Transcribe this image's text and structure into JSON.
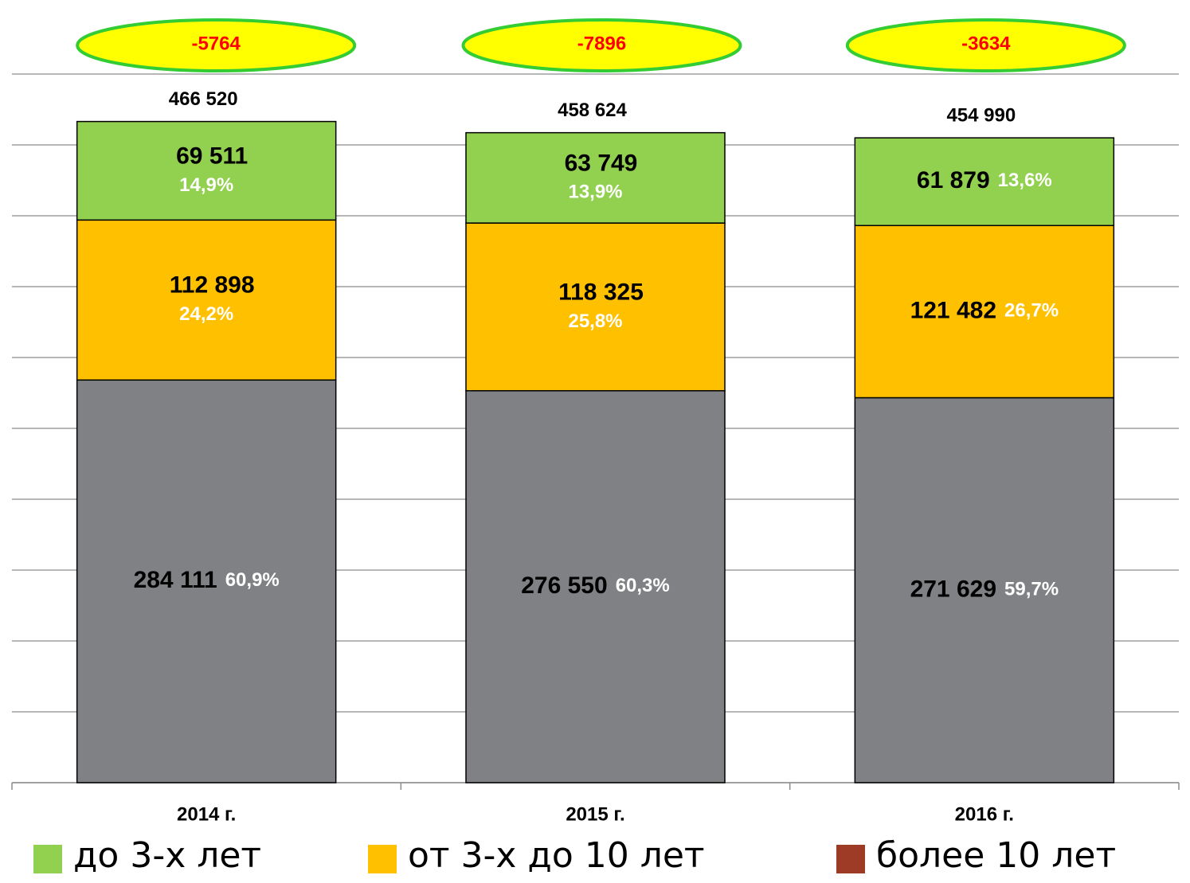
{
  "chart_data": {
    "type": "stacked_bar",
    "categories": [
      "2014 г.",
      "2015 г.",
      "2016 г."
    ],
    "series": [
      {
        "name": "до 3-х лет",
        "color": "#92d050",
        "legend_color": "#92d050",
        "values": [
          69511,
          63749,
          61879
        ],
        "value_labels": [
          "69 511",
          "63 749",
          "61 879"
        ],
        "shares": [
          14.9,
          13.9,
          13.6
        ],
        "share_labels": [
          "14,9%",
          "13,9%",
          "13,6%"
        ]
      },
      {
        "name": "от 3-х до 10 лет",
        "color": "#ffc000",
        "legend_color": "#ffc000",
        "values": [
          112898,
          118325,
          121482
        ],
        "value_labels": [
          "112 898",
          "118 325",
          "121 482"
        ],
        "shares": [
          24.2,
          25.8,
          26.7
        ],
        "share_labels": [
          "24,2%",
          "25,8%",
          "26,7%"
        ]
      },
      {
        "name": "более 10 лет",
        "color": "#7f8184",
        "legend_color": "#9e3b26",
        "values": [
          284111,
          276550,
          271629
        ],
        "value_labels": [
          "284 111",
          "276 550",
          "271 629"
        ],
        "shares": [
          60.9,
          60.3,
          59.7
        ],
        "share_labels": [
          "60,9%",
          "60,3%",
          "59,7%"
        ]
      }
    ],
    "totals": [
      466520,
      458624,
      454990
    ],
    "total_labels": [
      "466 520",
      "458 624",
      "454 990"
    ],
    "differences": [
      -5764,
      -7896,
      -3634
    ],
    "ylim": [
      0,
      500000
    ],
    "yticks": [
      0,
      50000,
      100000,
      150000,
      200000,
      250000,
      300000,
      350000,
      400000,
      450000,
      500000
    ],
    "grid": true
  }
}
